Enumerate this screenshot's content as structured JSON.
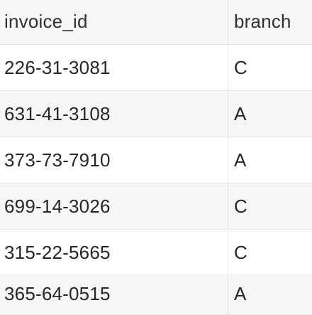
{
  "table": {
    "columns": [
      "invoice_id",
      "branch"
    ],
    "rows": [
      {
        "invoice_id": "226-31-3081",
        "branch": "C"
      },
      {
        "invoice_id": "631-41-3108",
        "branch": "A"
      },
      {
        "invoice_id": "373-73-7910",
        "branch": "A"
      },
      {
        "invoice_id": "699-14-3026",
        "branch": "C"
      },
      {
        "invoice_id": "315-22-5665",
        "branch": "C"
      },
      {
        "invoice_id": "365-64-0515",
        "branch": "A"
      }
    ]
  }
}
